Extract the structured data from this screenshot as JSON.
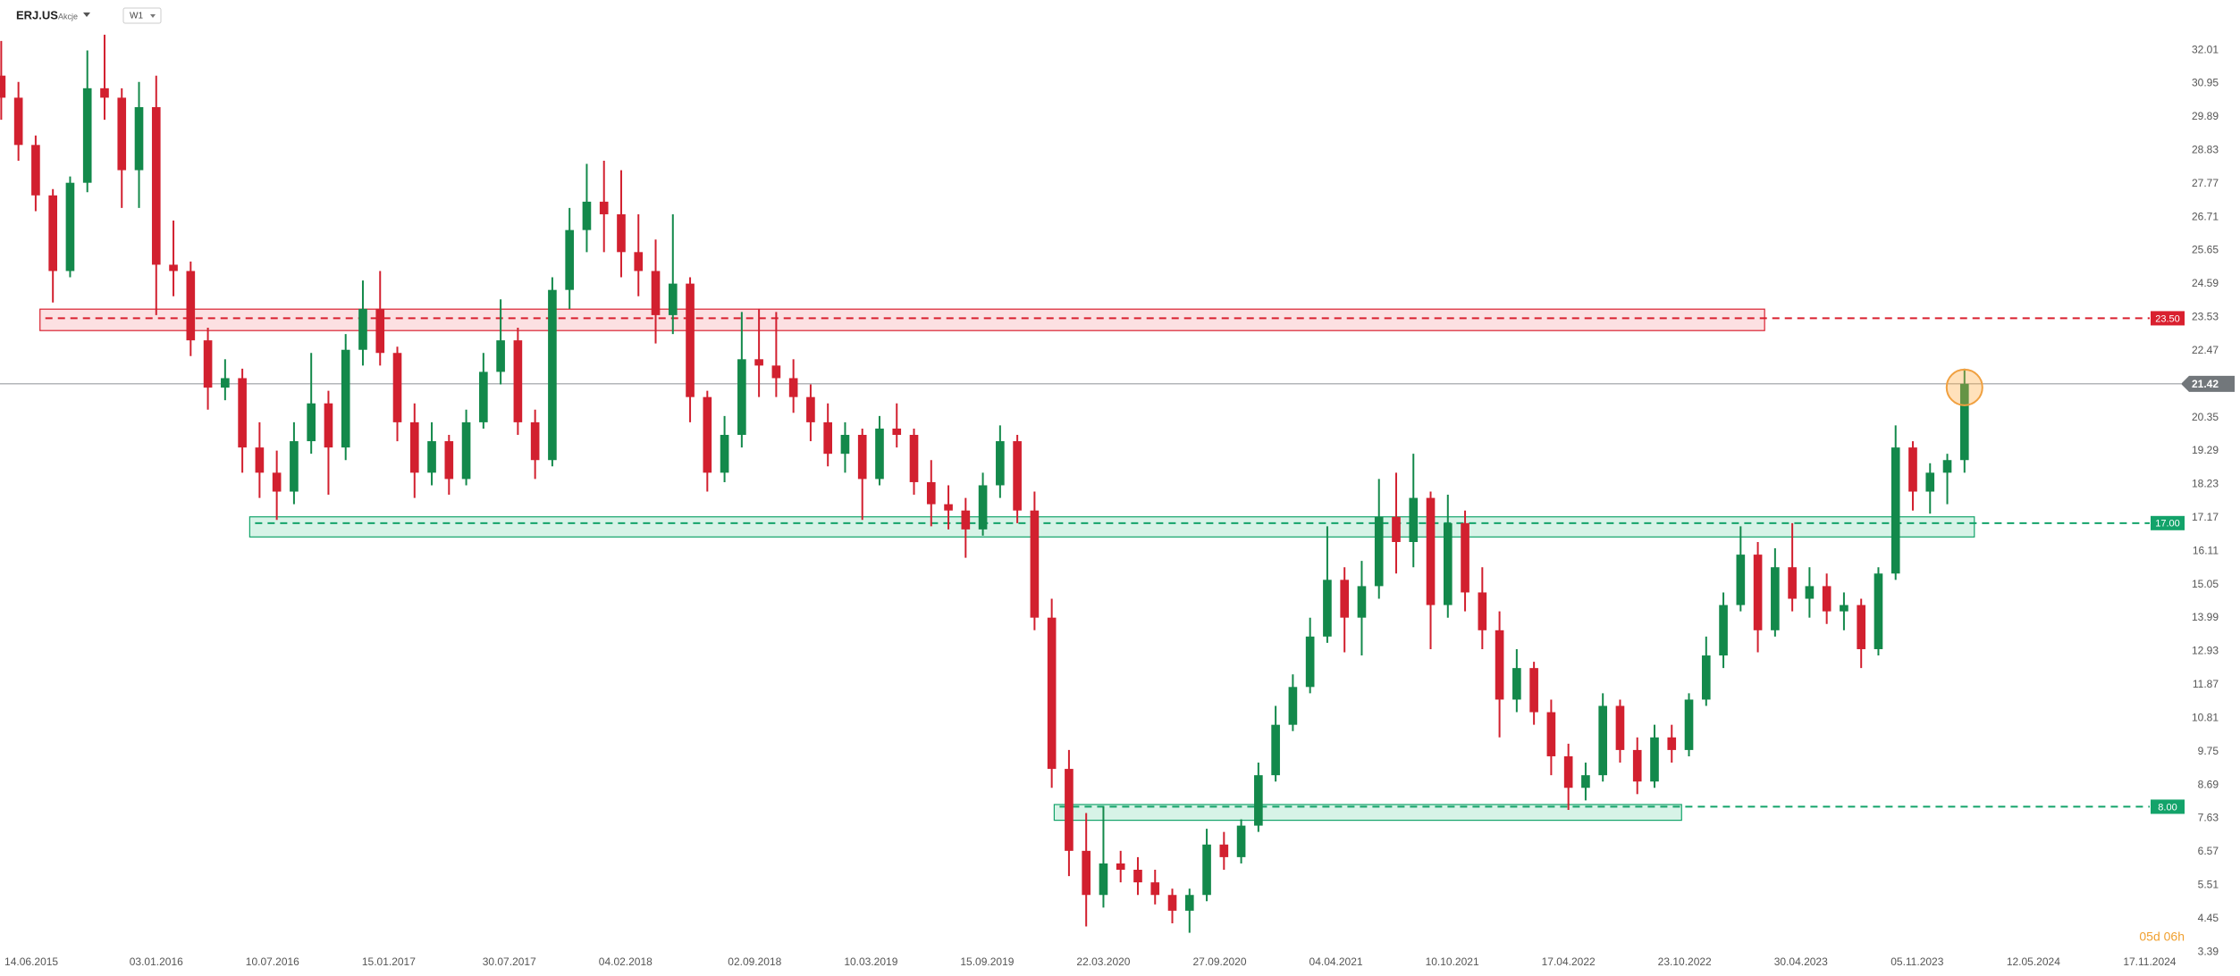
{
  "header": {
    "symbol": "ERJ.US",
    "market": "Akcje",
    "interval": "W1"
  },
  "chart_data": {
    "type": "candlestick",
    "x": [
      "26.04.2015",
      "24.05.2015",
      "21.06.2015",
      "19.07.2015",
      "16.08.2015",
      "13.09.2015",
      "11.10.2015",
      "08.11.2015",
      "06.12.2015",
      "03.01.2016",
      "31.01.2016",
      "28.02.2016",
      "27.03.2016",
      "24.04.2016",
      "22.05.2016",
      "19.06.2016",
      "17.07.2016",
      "14.08.2016",
      "11.09.2016",
      "09.10.2016",
      "06.11.2016",
      "04.12.2016",
      "01.01.2017",
      "29.01.2017",
      "26.02.2017",
      "26.03.2017",
      "23.04.2017",
      "21.05.2017",
      "18.06.2017",
      "16.07.2017",
      "13.08.2017",
      "10.09.2017",
      "08.10.2017",
      "05.11.2017",
      "03.12.2017",
      "31.12.2017",
      "28.01.2018",
      "25.02.2018",
      "25.03.2018",
      "22.04.2018",
      "20.05.2018",
      "17.06.2018",
      "15.07.2018",
      "12.08.2018",
      "09.09.2018",
      "07.10.2018",
      "04.11.2018",
      "02.12.2018",
      "30.12.2018",
      "27.01.2019",
      "24.02.2019",
      "24.03.2019",
      "21.04.2019",
      "19.05.2019",
      "16.06.2019",
      "14.07.2019",
      "11.08.2019",
      "08.09.2019",
      "06.10.2019",
      "03.11.2019",
      "01.12.2019",
      "29.12.2019",
      "26.01.2020",
      "23.02.2020",
      "22.03.2020",
      "19.04.2020",
      "17.05.2020",
      "14.06.2020",
      "12.07.2020",
      "09.08.2020",
      "06.09.2020",
      "04.10.2020",
      "01.11.2020",
      "29.11.2020",
      "27.12.2020",
      "24.01.2021",
      "21.02.2021",
      "21.03.2021",
      "18.04.2021",
      "16.05.2021",
      "13.06.2021",
      "11.07.2021",
      "08.08.2021",
      "05.09.2021",
      "03.10.2021",
      "31.10.2021",
      "28.11.2021",
      "26.12.2021",
      "23.01.2022",
      "20.02.2022",
      "20.03.2022",
      "17.04.2022",
      "15.05.2022",
      "12.06.2022",
      "10.07.2022",
      "07.08.2022",
      "04.09.2022",
      "02.10.2022",
      "30.10.2022",
      "27.11.2022",
      "25.12.2022",
      "22.01.2023",
      "19.02.2023",
      "19.03.2023",
      "16.04.2023",
      "14.05.2023",
      "11.06.2023",
      "09.07.2023",
      "06.08.2023",
      "03.09.2023",
      "01.10.2023",
      "29.10.2023",
      "26.11.2023",
      "24.12.2023",
      "21.01.2024"
    ],
    "open": [
      31.2,
      30.5,
      29.0,
      27.4,
      25.0,
      27.8,
      30.8,
      30.5,
      28.2,
      30.2,
      25.2,
      25.0,
      22.8,
      21.3,
      21.6,
      19.4,
      18.6,
      18.0,
      19.6,
      20.8,
      19.4,
      22.5,
      23.8,
      22.4,
      20.2,
      18.6,
      19.6,
      18.4,
      20.2,
      21.8,
      22.8,
      20.2,
      19.0,
      24.4,
      26.3,
      27.2,
      26.8,
      25.6,
      25.0,
      23.6,
      24.6,
      21.0,
      18.6,
      19.8,
      22.2,
      22.0,
      21.6,
      21.0,
      20.2,
      19.2,
      19.8,
      18.4,
      20.0,
      19.8,
      18.3,
      17.6,
      17.4,
      16.8,
      18.2,
      19.6,
      17.4,
      14.0,
      9.2,
      6.6,
      5.2,
      6.2,
      6.0,
      5.6,
      5.2,
      4.7,
      5.2,
      6.8,
      6.4,
      7.4,
      9.0,
      10.6,
      11.8,
      13.4,
      15.2,
      14.0,
      15.0,
      17.2,
      16.4,
      17.8,
      14.4,
      17.0,
      14.8,
      13.6,
      11.4,
      12.4,
      11.0,
      9.6,
      8.6,
      9.0,
      11.2,
      9.8,
      8.8,
      10.2,
      9.8,
      11.4,
      12.8,
      14.4,
      16.0,
      13.6,
      15.6,
      14.6,
      15.0,
      14.2,
      14.4,
      13.0,
      15.4,
      19.4,
      18.0,
      18.6,
      19.0
    ],
    "high": [
      32.3,
      31.0,
      29.3,
      27.6,
      28.0,
      32.0,
      32.5,
      30.8,
      31.0,
      31.2,
      26.6,
      25.3,
      23.2,
      22.2,
      21.9,
      20.2,
      19.3,
      20.2,
      22.4,
      21.2,
      23.0,
      24.7,
      25.0,
      22.6,
      20.8,
      20.2,
      19.8,
      20.6,
      22.4,
      24.1,
      23.2,
      20.6,
      24.8,
      27.0,
      28.4,
      28.5,
      28.2,
      26.8,
      26.0,
      26.8,
      24.8,
      21.2,
      20.4,
      23.7,
      23.8,
      23.7,
      22.2,
      21.4,
      20.8,
      20.2,
      20.0,
      20.4,
      20.8,
      20.0,
      19.0,
      18.2,
      17.8,
      18.6,
      20.1,
      19.8,
      18.0,
      14.6,
      9.8,
      7.8,
      8.0,
      6.6,
      6.4,
      6.0,
      5.4,
      5.4,
      7.3,
      7.2,
      7.6,
      9.4,
      11.2,
      12.2,
      14.0,
      16.9,
      15.6,
      15.8,
      18.4,
      18.6,
      19.2,
      18.0,
      17.9,
      17.4,
      15.6,
      14.2,
      13.0,
      12.6,
      11.4,
      10.0,
      9.4,
      11.6,
      11.4,
      10.2,
      10.6,
      10.6,
      11.6,
      13.4,
      14.8,
      16.9,
      16.4,
      16.2,
      17.0,
      15.6,
      15.4,
      14.8,
      14.6,
      15.6,
      20.1,
      19.6,
      18.9,
      19.2,
      21.9
    ],
    "low": [
      29.8,
      28.5,
      26.9,
      24.0,
      24.8,
      27.5,
      29.8,
      27.0,
      27.0,
      23.6,
      24.2,
      22.3,
      20.6,
      20.9,
      18.6,
      17.8,
      17.1,
      17.6,
      19.2,
      17.9,
      19.0,
      22.0,
      22.0,
      19.6,
      17.8,
      18.2,
      17.9,
      18.2,
      20.0,
      21.4,
      19.8,
      18.4,
      18.8,
      23.8,
      25.6,
      25.6,
      24.8,
      24.2,
      22.7,
      23.0,
      20.2,
      18.0,
      18.3,
      19.4,
      21.0,
      21.0,
      20.5,
      19.6,
      18.8,
      18.6,
      17.1,
      18.2,
      19.4,
      17.9,
      16.9,
      16.8,
      15.9,
      16.6,
      17.8,
      17.0,
      13.6,
      8.6,
      5.8,
      4.2,
      4.8,
      5.6,
      5.2,
      4.9,
      4.3,
      4.0,
      5.0,
      6.0,
      6.2,
      7.2,
      8.8,
      10.4,
      11.6,
      13.2,
      12.9,
      12.8,
      14.6,
      15.4,
      15.6,
      13.0,
      14.0,
      14.2,
      13.0,
      10.2,
      11.0,
      10.6,
      9.0,
      7.9,
      8.2,
      8.8,
      9.4,
      8.4,
      8.6,
      9.4,
      9.6,
      11.2,
      12.4,
      14.2,
      12.9,
      13.4,
      14.2,
      14.0,
      13.8,
      13.6,
      12.4,
      12.8,
      15.2,
      17.4,
      17.3,
      17.6,
      18.6
    ],
    "close": [
      30.5,
      29.0,
      27.4,
      25.0,
      27.8,
      30.8,
      30.5,
      28.2,
      30.2,
      25.2,
      25.0,
      22.8,
      21.3,
      21.6,
      19.4,
      18.6,
      18.0,
      19.6,
      20.8,
      19.4,
      22.5,
      23.8,
      22.4,
      20.2,
      18.6,
      19.6,
      18.4,
      20.2,
      21.8,
      22.8,
      20.2,
      19.0,
      24.4,
      26.3,
      27.2,
      26.8,
      25.6,
      25.0,
      23.6,
      24.6,
      21.0,
      18.6,
      19.8,
      22.2,
      22.0,
      21.6,
      21.0,
      20.2,
      19.2,
      19.8,
      18.4,
      20.0,
      19.8,
      18.3,
      17.6,
      17.4,
      16.8,
      18.2,
      19.6,
      17.4,
      14.0,
      9.2,
      6.6,
      5.2,
      6.2,
      6.0,
      5.6,
      5.2,
      4.7,
      5.2,
      6.8,
      6.4,
      7.4,
      9.0,
      10.6,
      11.8,
      13.4,
      15.2,
      14.0,
      15.0,
      17.2,
      16.4,
      17.8,
      14.4,
      17.0,
      14.8,
      13.6,
      11.4,
      12.4,
      11.0,
      9.6,
      8.6,
      9.0,
      11.2,
      9.8,
      8.8,
      10.2,
      9.8,
      11.4,
      12.8,
      14.4,
      16.0,
      13.6,
      15.6,
      14.6,
      15.0,
      14.2,
      14.4,
      13.0,
      15.4,
      19.4,
      18.0,
      18.6,
      19.0,
      21.42
    ],
    "up_color": "#13894b",
    "down_color": "#d2202f",
    "price_line_color": "#9a9ea2",
    "price_tag_color": "#72777b",
    "xlim": [
      "24.04.2015",
      "07.01.2025"
    ],
    "xticks": [
      "14.06.2015",
      "03.01.2016",
      "10.07.2016",
      "15.01.2017",
      "30.07.2017",
      "04.02.2018",
      "02.09.2018",
      "10.03.2019",
      "15.09.2019",
      "22.03.2020",
      "27.09.2020",
      "04.04.2021",
      "10.10.2021",
      "17.04.2022",
      "23.10.2022",
      "30.04.2023",
      "05.11.2023",
      "12.05.2024",
      "17.11.2024"
    ],
    "ylim": [
      3.28,
      33.6
    ],
    "yticks": [
      32.01,
      30.95,
      29.89,
      28.83,
      27.77,
      26.71,
      25.65,
      24.59,
      23.53,
      22.47,
      20.35,
      19.29,
      18.23,
      17.17,
      16.11,
      15.05,
      13.99,
      12.93,
      11.87,
      10.81,
      9.75,
      8.69,
      7.63,
      6.57,
      5.51,
      4.45,
      3.39
    ],
    "grid": false,
    "levels": [
      {
        "value": 23.5,
        "label": "23.50",
        "zone": [
          23.11,
          23.79
        ],
        "from": "28.06.2015",
        "to": "02.03.2023",
        "color": "#d9202f",
        "fill": "#fbd6d8"
      },
      {
        "value": 17,
        "label": "17.00",
        "zone": [
          16.56,
          17.2
        ],
        "from": "03.06.2016",
        "to": "06.02.2024",
        "color": "#13a36a",
        "fill": "#c9efdf"
      },
      {
        "value": 8,
        "label": "8.00",
        "zone": [
          7.57,
          8.07
        ],
        "from": "02.01.2020",
        "to": "18.10.2022",
        "color": "#13a36a",
        "fill": "#c9efdf"
      }
    ],
    "countdown": "05d 06h"
  }
}
